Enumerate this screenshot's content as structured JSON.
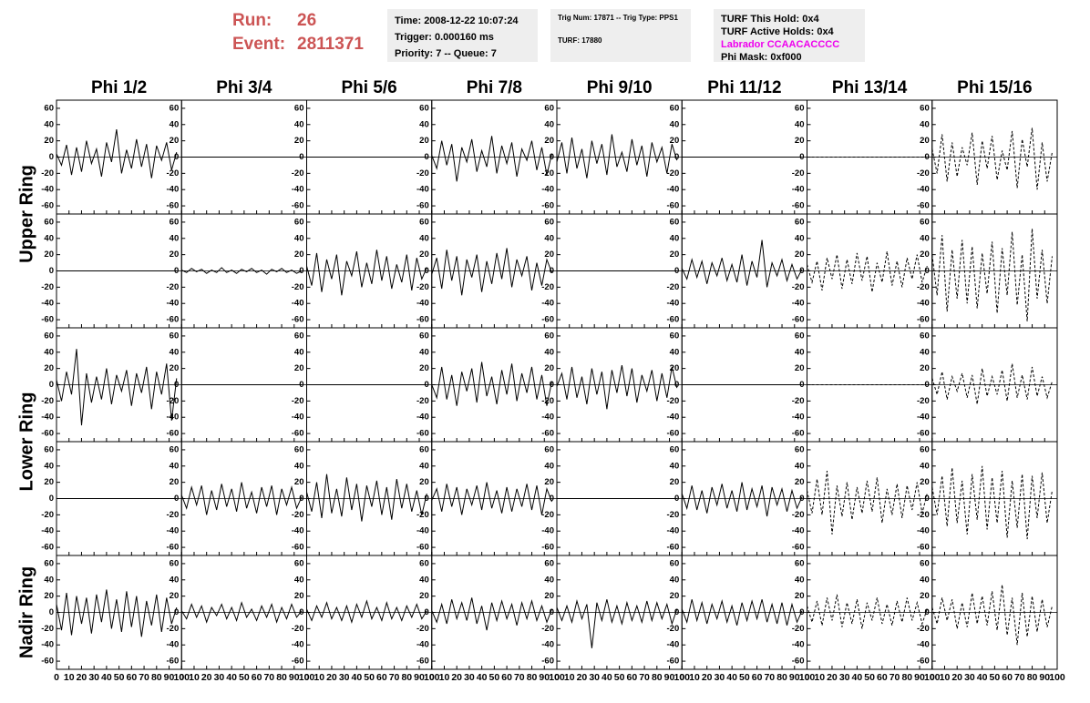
{
  "header": {
    "run_label": "Run:",
    "run": "26",
    "event_label": "Event:",
    "event": "2811371",
    "box1": [
      "Time: 2008-12-22 10:07:24",
      "Trigger: 0.000160 ms",
      "Priority: 7 -- Queue: 7"
    ],
    "box2": [
      "Trig Num: 17871 -- Trig Type: PPS1",
      "TURF: 17880"
    ],
    "box3": [
      "TURF This Hold: 0x4",
      "TURF Active Holds: 0x4",
      "Labrador CCAACACCCC",
      "Phi Mask: 0xf000"
    ]
  },
  "chart_data": {
    "type": "waveform-grid",
    "columns": [
      {
        "name": "Phi 1/2",
        "dashed": false
      },
      {
        "name": "Phi 3/4",
        "dashed": false
      },
      {
        "name": "Phi 5/6",
        "dashed": false
      },
      {
        "name": "Phi 7/8",
        "dashed": false
      },
      {
        "name": "Phi 9/10",
        "dashed": false
      },
      {
        "name": "Phi 11/12",
        "dashed": false
      },
      {
        "name": "Phi 13/14",
        "dashed": true
      },
      {
        "name": "Phi 15/16",
        "dashed": true
      }
    ],
    "ring_labels": [
      "Upper Ring",
      "Lower Ring",
      "Nadir Ring"
    ],
    "xlim": [
      0,
      100
    ],
    "ylim": [
      -70,
      70
    ],
    "xticks": [
      0,
      10,
      20,
      30,
      40,
      50,
      60,
      70,
      80,
      90,
      100
    ],
    "yticks": [
      -60,
      -40,
      -20,
      0,
      20,
      40,
      60
    ],
    "x": [
      0,
      4,
      8,
      12,
      16,
      20,
      24,
      28,
      32,
      36,
      40,
      44,
      48,
      52,
      56,
      60,
      64,
      68,
      72,
      76,
      80,
      84,
      88,
      92,
      96
    ],
    "panels": [
      [
        [
          4,
          -10,
          15,
          -22,
          12,
          -18,
          20,
          -8,
          10,
          -24,
          18,
          -6,
          34,
          -20,
          9,
          -14,
          22,
          -12,
          16,
          -26,
          14,
          -4,
          18,
          -16,
          6
        ],
        [
          0,
          0,
          0,
          0,
          0,
          0,
          0,
          0,
          0,
          0,
          0,
          0,
          0,
          0,
          0,
          0,
          0,
          0,
          0,
          0,
          0,
          0,
          0,
          0,
          0
        ],
        [
          0,
          0,
          0,
          0,
          0,
          0,
          0,
          0,
          0,
          0,
          0,
          0,
          0,
          0,
          0,
          0,
          0,
          0,
          0,
          0,
          0,
          0,
          0,
          0,
          0
        ],
        [
          2,
          -14,
          20,
          -10,
          16,
          -30,
          12,
          -6,
          22,
          -18,
          8,
          -12,
          26,
          -20,
          14,
          -8,
          18,
          -24,
          10,
          -4,
          20,
          -16,
          12,
          -22,
          4
        ],
        [
          -6,
          18,
          -20,
          24,
          -14,
          10,
          -26,
          20,
          -8,
          16,
          -22,
          28,
          -12,
          6,
          -18,
          22,
          -10,
          14,
          -24,
          18,
          -6,
          12,
          -20,
          16,
          -4
        ],
        [
          0,
          0,
          0,
          0,
          0,
          0,
          0,
          0,
          0,
          0,
          0,
          0,
          0,
          0,
          0,
          0,
          0,
          0,
          0,
          0,
          0,
          0,
          0,
          0,
          0
        ],
        [
          0,
          0,
          0,
          0,
          0,
          0,
          0,
          0,
          0,
          0,
          0,
          0,
          0,
          0,
          0,
          0,
          0,
          0,
          0,
          0,
          0,
          0,
          0,
          0,
          0
        ],
        [
          10,
          -20,
          28,
          -30,
          18,
          -24,
          12,
          -10,
          30,
          -34,
          20,
          -14,
          26,
          -28,
          8,
          -16,
          32,
          -38,
          22,
          -12,
          36,
          -40,
          18,
          -30,
          6
        ]
      ],
      [
        [
          0,
          0,
          0,
          0,
          0,
          0,
          0,
          0,
          0,
          0,
          0,
          0,
          0,
          0,
          0,
          0,
          0,
          0,
          0,
          0,
          0,
          0,
          0,
          0,
          0
        ],
        [
          1,
          -2,
          3,
          -1,
          2,
          -3,
          1,
          -2,
          4,
          -2,
          1,
          -3,
          2,
          -1,
          3,
          -2,
          1,
          -4,
          2,
          -1,
          3,
          -2,
          1,
          -3,
          0
        ],
        [
          6,
          -18,
          22,
          -26,
          14,
          -10,
          20,
          -30,
          12,
          -6,
          24,
          -20,
          10,
          -16,
          26,
          -12,
          18,
          -22,
          8,
          -14,
          20,
          -24,
          16,
          -10,
          4
        ],
        [
          -4,
          16,
          -22,
          26,
          -12,
          18,
          -30,
          14,
          -8,
          20,
          -26,
          12,
          -16,
          22,
          -10,
          28,
          -20,
          14,
          -6,
          18,
          -24,
          10,
          -18,
          14,
          -2
        ],
        [
          0,
          0,
          0,
          0,
          0,
          0,
          0,
          0,
          0,
          0,
          0,
          0,
          0,
          0,
          0,
          0,
          0,
          0,
          0,
          0,
          0,
          0,
          0,
          0,
          0
        ],
        [
          3,
          -10,
          14,
          -8,
          12,
          -16,
          10,
          -6,
          16,
          -12,
          8,
          -14,
          20,
          -18,
          12,
          -8,
          38,
          -20,
          10,
          -6,
          14,
          -12,
          8,
          -10,
          2
        ],
        [
          8,
          -14,
          12,
          -24,
          16,
          -10,
          20,
          -22,
          14,
          -16,
          22,
          -12,
          18,
          -26,
          10,
          -14,
          24,
          -18,
          12,
          -20,
          16,
          -10,
          20,
          -14,
          6
        ],
        [
          20,
          -30,
          44,
          -50,
          26,
          -34,
          38,
          -40,
          30,
          -46,
          22,
          -28,
          36,
          -52,
          28,
          -30,
          48,
          -42,
          20,
          -62,
          52,
          -34,
          26,
          -40,
          18
        ]
      ],
      [
        [
          6,
          -20,
          16,
          -12,
          44,
          -50,
          14,
          -22,
          10,
          -18,
          20,
          -24,
          12,
          -8,
          18,
          -26,
          14,
          -10,
          22,
          -30,
          16,
          -12,
          26,
          -44,
          8
        ],
        [
          0,
          0,
          0,
          0,
          0,
          0,
          0,
          0,
          0,
          0,
          0,
          0,
          0,
          0,
          0,
          0,
          0,
          0,
          0,
          0,
          0,
          0,
          0,
          0,
          0
        ],
        [
          0,
          0,
          0,
          0,
          0,
          0,
          0,
          0,
          0,
          0,
          0,
          0,
          0,
          0,
          0,
          0,
          0,
          0,
          0,
          0,
          0,
          0,
          0,
          0,
          0
        ],
        [
          0,
          -16,
          22,
          -18,
          12,
          -26,
          16,
          -8,
          20,
          -22,
          28,
          -14,
          10,
          -24,
          18,
          -12,
          26,
          -20,
          14,
          -10,
          22,
          -18,
          12,
          -26,
          4
        ],
        [
          -2,
          14,
          -18,
          22,
          -16,
          10,
          -24,
          20,
          -12,
          16,
          -30,
          18,
          -10,
          24,
          -14,
          20,
          -22,
          12,
          -8,
          18,
          -20,
          14,
          -16,
          22,
          -4
        ],
        [
          0,
          0,
          0,
          0,
          0,
          0,
          0,
          0,
          0,
          0,
          0,
          0,
          0,
          0,
          0,
          0,
          0,
          0,
          0,
          0,
          0,
          0,
          0,
          0,
          0
        ],
        [
          0,
          0,
          0,
          0,
          0,
          0,
          0,
          0,
          0,
          0,
          0,
          0,
          0,
          0,
          0,
          0,
          0,
          0,
          0,
          0,
          0,
          0,
          0,
          0,
          0
        ],
        [
          8,
          -12,
          16,
          -18,
          10,
          -8,
          14,
          -16,
          12,
          -24,
          20,
          -14,
          10,
          -12,
          18,
          -20,
          26,
          -16,
          12,
          -18,
          22,
          -14,
          10,
          -16,
          4
        ]
      ],
      [
        [
          0,
          0,
          0,
          0,
          0,
          0,
          0,
          0,
          0,
          0,
          0,
          0,
          0,
          0,
          0,
          0,
          0,
          0,
          0,
          0,
          0,
          0,
          0,
          0,
          0
        ],
        [
          4,
          -12,
          14,
          -8,
          16,
          -20,
          10,
          -14,
          18,
          -10,
          12,
          -16,
          20,
          -12,
          8,
          -18,
          14,
          -10,
          16,
          -20,
          12,
          -8,
          14,
          -12,
          2
        ],
        [
          8,
          -16,
          20,
          -24,
          30,
          -18,
          12,
          -22,
          26,
          -14,
          18,
          -28,
          16,
          -10,
          22,
          -20,
          14,
          -26,
          24,
          -12,
          18,
          -16,
          10,
          -20,
          6
        ],
        [
          -2,
          12,
          -16,
          18,
          -10,
          14,
          -20,
          12,
          -8,
          16,
          -14,
          20,
          -12,
          10,
          -18,
          14,
          -16,
          12,
          -10,
          18,
          -14,
          16,
          -20,
          12,
          -4
        ],
        [
          0,
          0,
          0,
          0,
          0,
          0,
          0,
          0,
          0,
          0,
          0,
          0,
          0,
          0,
          0,
          0,
          0,
          0,
          0,
          0,
          0,
          0,
          0,
          0,
          0
        ],
        [
          6,
          -12,
          16,
          -14,
          10,
          -18,
          14,
          -8,
          18,
          -12,
          10,
          -16,
          20,
          -14,
          12,
          -10,
          16,
          -22,
          14,
          -8,
          12,
          -16,
          10,
          -12,
          2
        ],
        [
          10,
          -18,
          24,
          -20,
          34,
          -44,
          16,
          -22,
          20,
          -26,
          14,
          -18,
          22,
          -16,
          26,
          -30,
          12,
          -20,
          18,
          -24,
          16,
          -14,
          20,
          -18,
          6
        ],
        [
          14,
          -20,
          28,
          -34,
          38,
          -30,
          22,
          -44,
          30,
          -26,
          40,
          -38,
          26,
          -30,
          34,
          -48,
          22,
          -36,
          30,
          -50,
          28,
          -24,
          32,
          -30,
          10
        ]
      ],
      [
        [
          10,
          -22,
          24,
          -28,
          20,
          -14,
          18,
          -26,
          22,
          -12,
          28,
          -20,
          16,
          -24,
          26,
          -18,
          20,
          -30,
          14,
          -16,
          22,
          -24,
          18,
          -14,
          6
        ],
        [
          2,
          -8,
          10,
          -6,
          8,
          -12,
          6,
          -4,
          10,
          -8,
          6,
          -10,
          12,
          -6,
          4,
          -10,
          8,
          -6,
          10,
          -12,
          6,
          -8,
          10,
          -6,
          2
        ],
        [
          4,
          -10,
          8,
          -6,
          12,
          -8,
          6,
          -10,
          8,
          -12,
          10,
          -6,
          14,
          -8,
          6,
          -10,
          12,
          -8,
          6,
          -10,
          8,
          -6,
          10,
          -8,
          2
        ],
        [
          2,
          -12,
          10,
          -14,
          16,
          -8,
          12,
          -10,
          18,
          -14,
          8,
          -22,
          12,
          -10,
          14,
          -8,
          10,
          -16,
          12,
          -8,
          14,
          -10,
          8,
          -12,
          4
        ],
        [
          6,
          -10,
          8,
          -12,
          14,
          -8,
          10,
          -44,
          12,
          -10,
          16,
          -12,
          8,
          -14,
          12,
          -10,
          8,
          -12,
          14,
          -10,
          12,
          -8,
          10,
          -14,
          4
        ],
        [
          4,
          -12,
          16,
          -10,
          12,
          -14,
          10,
          -8,
          14,
          -12,
          8,
          -16,
          12,
          -10,
          14,
          -8,
          16,
          -12,
          10,
          -14,
          12,
          -16,
          10,
          -12,
          2
        ],
        [
          8,
          -12,
          14,
          -16,
          18,
          -10,
          22,
          -18,
          12,
          -14,
          16,
          -20,
          12,
          -10,
          18,
          -14,
          10,
          -16,
          14,
          -12,
          18,
          -10,
          12,
          -14,
          4
        ],
        [
          6,
          -14,
          18,
          -10,
          16,
          -20,
          12,
          -18,
          24,
          -14,
          20,
          -16,
          26,
          -22,
          34,
          -28,
          18,
          -40,
          24,
          -30,
          20,
          -24,
          16,
          -18,
          8
        ]
      ]
    ]
  }
}
